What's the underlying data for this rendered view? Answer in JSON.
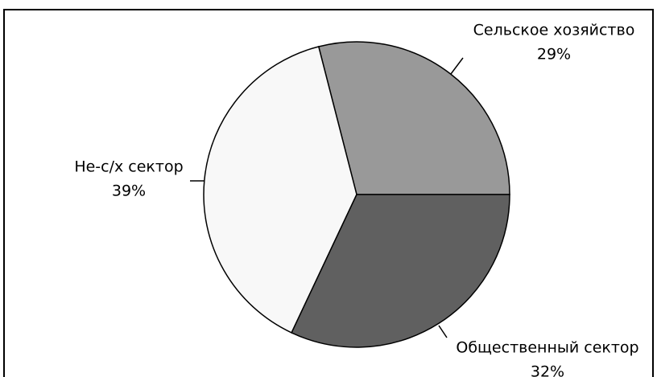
{
  "chart_data": {
    "type": "pie",
    "categories": [
      "Сельское хозяйство",
      "Не-с/х сектор",
      "Общественный сектор"
    ],
    "values": [
      29,
      39,
      32
    ],
    "value_labels": [
      "29%",
      "39%",
      "32%"
    ],
    "colors": [
      "#999999",
      "#f8f8f8",
      "#606060"
    ]
  }
}
